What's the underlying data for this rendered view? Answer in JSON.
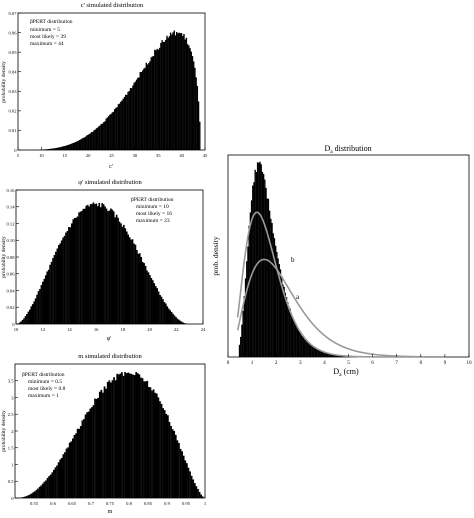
{
  "chart_data": [
    {
      "id": "c",
      "type": "bar",
      "title": "c' simulated distribution",
      "xlabel": "c'",
      "ylabel": "probability density",
      "xlim": [
        5,
        45
      ],
      "ylim": [
        0,
        0.07
      ],
      "xticks": [
        5,
        10,
        15,
        20,
        25,
        30,
        35,
        40,
        45
      ],
      "yticks": [
        0,
        0.01,
        0.02,
        0.03,
        0.04,
        0.05,
        0.06,
        0.07
      ],
      "ytick_labels": [
        "0",
        "0.01",
        "0.02",
        "0.03",
        "0.04",
        "0.05",
        "0.06",
        "0.07"
      ],
      "pert": {
        "min": 5,
        "mode": 39,
        "max": 44
      },
      "bins": 150,
      "peak_density": 0.06,
      "legend_lines": [
        "βPERT distribution",
        "minimum = 5",
        "most likely = 39",
        "maximum = 44"
      ]
    },
    {
      "id": "phi",
      "type": "bar",
      "title": "φ' simulated distribution",
      "xlabel": "φ'",
      "ylabel": "probability density",
      "xlim": [
        10,
        24
      ],
      "ylim": [
        0,
        0.16
      ],
      "xticks": [
        10,
        12,
        14,
        16,
        18,
        20,
        22,
        24
      ],
      "yticks": [
        0,
        0.02,
        0.04,
        0.06,
        0.08,
        0.1,
        0.12,
        0.14,
        0.16
      ],
      "ytick_labels": [
        "0",
        "0.02",
        "0.04",
        "0.06",
        "0.08",
        "0.10",
        "0.12",
        "0.14",
        "0.16"
      ],
      "pert": {
        "min": 10,
        "mode": 16,
        "max": 23
      },
      "bins": 120,
      "peak_density": 0.143,
      "legend_lines": [
        "βPERT distribution",
        "minimum = 10",
        "most likely = 16",
        "maximum = 23"
      ]
    },
    {
      "id": "m",
      "type": "bar",
      "title": "m simulated distribution",
      "xlabel": "m",
      "ylabel": "probability density",
      "xlim": [
        0.5,
        1
      ],
      "ylim": [
        0,
        4
      ],
      "xticks": [
        0.55,
        0.6,
        0.65,
        0.7,
        0.75,
        0.8,
        0.85,
        0.9,
        0.95,
        1
      ],
      "yticks": [
        0,
        0.5,
        1,
        1.5,
        2,
        2.5,
        3,
        3.5
      ],
      "ytick_labels": [
        "0",
        "0.5",
        "1",
        "1.5",
        "2",
        "2.5",
        "3",
        "3.5"
      ],
      "pert": {
        "min": 0.5,
        "mode": 0.8,
        "max": 1
      },
      "bins": 120,
      "peak_density": 3.75,
      "legend_lines": [
        "βPERT distribution",
        "minimum = 0.5",
        "most likely = 0.8",
        "maximum = 1"
      ]
    },
    {
      "id": "da",
      "type": "bar",
      "title": "D",
      "title_subscript": "a",
      "title_suffix": " distribution",
      "xlabel": "D",
      "xlabel_subscript": "a",
      "xlabel_suffix": " (cm)",
      "ylabel": "prob. density",
      "xlim": [
        0,
        10
      ],
      "ylim": [
        0,
        0.6
      ],
      "xticks": [
        0,
        1,
        2,
        3,
        4,
        5,
        6,
        7,
        8,
        9,
        10
      ],
      "yticks": [],
      "histogram": {
        "lognormal_mu": 0.42,
        "lognormal_sigma": 0.42,
        "x_start": 0.45,
        "bin_width": 0.05,
        "peak_density": 0.57
      },
      "curves": [
        {
          "label": "b",
          "mode": 1.2,
          "peak": 0.43
        },
        {
          "label": "a",
          "mode": 1.5,
          "peak": 0.29
        }
      ]
    }
  ]
}
